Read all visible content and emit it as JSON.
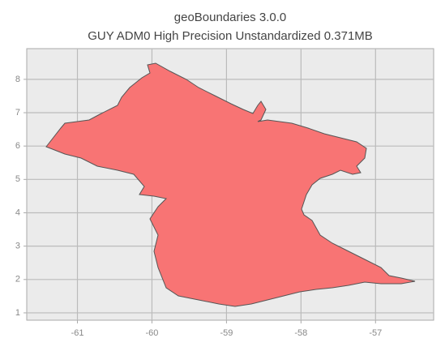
{
  "chart_data": {
    "type": "map",
    "title": "geoBoundaries 3.0.0",
    "subtitle": "GUY ADM0 High Precision Unstandardized 0.371MB",
    "xlim": [
      -61.68,
      -56.22
    ],
    "xticks": [
      -61,
      -60,
      -59,
      -58,
      -57
    ],
    "ylim": [
      0.78,
      8.92
    ],
    "yticks": [
      1,
      2,
      3,
      4,
      5,
      6,
      7,
      8
    ],
    "grid": true,
    "color": "#f87474"
  }
}
